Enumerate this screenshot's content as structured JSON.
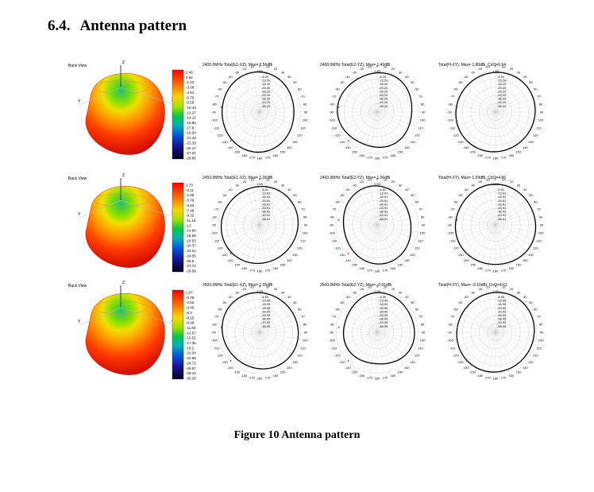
{
  "section": {
    "number": "6.4.",
    "title": "Antenna pattern"
  },
  "caption": "Figure 10 Antenna pattern",
  "angle_labels": [
    "0",
    "10",
    "20",
    "30",
    "40",
    "50",
    "60",
    "70",
    "80",
    "90",
    "100",
    "110",
    "120",
    "130",
    "140",
    "150",
    "160",
    "170",
    "180",
    "-170",
    "-160",
    "-150",
    "-140",
    "-130",
    "-120",
    "-110",
    "-100",
    "-90",
    "-80",
    "-70",
    "-60",
    "-50",
    "-40",
    "-30",
    "-20",
    "-10"
  ],
  "rows": [
    {
      "view_label": "Back View",
      "colorbar": [
        "2.46",
        "0.62",
        "-1.22",
        "-3.06",
        "-4.91",
        "-6.75",
        "-8.59",
        "-10.43",
        "-12.27",
        "-14.12",
        "-15.96",
        "-17.8",
        "-19.64",
        "-21.48",
        "-23.33",
        "-25.17",
        "-27.01",
        "-28.85"
      ],
      "plots": [
        {
          "title": "2400.0MHz Total(E1-XZ), Max= 0.56dBi",
          "top_value": "1.80",
          "rings": [
            "-8.20",
            "-13.20",
            "-18.20",
            "-23.20",
            "-28.20",
            "-33.20",
            "-38.20",
            "-43.20",
            "-48.20"
          ]
        },
        {
          "title": "2400.0MHz Total(E2-YZ), Max= 1.49dBi",
          "top_value": "1.80",
          "rings": [
            "-8.20",
            "-13.20",
            "-18.20",
            "-23.20",
            "-28.20",
            "-33.20",
            "-38.20",
            "-43.20",
            "-48.20"
          ]
        },
        {
          "title": "Total(H-XY), Max= 1.80dBi, CirO=6.64",
          "top_value": "1.80",
          "rings": [
            "-8.20",
            "-13.20",
            "-18.20",
            "-23.20",
            "-28.20",
            "-33.20",
            "-38.20",
            "-43.20",
            "-48.20"
          ]
        }
      ]
    },
    {
      "view_label": "Back View",
      "colorbar": [
        "1.73",
        "-0.11",
        "-1.95",
        "-3.79",
        "-5.63",
        "-7.48",
        "-9.32",
        "-11.16",
        "-13",
        "-14.84",
        "-16.69",
        "-18.53",
        "-20.37",
        "-22.21",
        "-24.06",
        "-25.9",
        "-27.74",
        "-29.58"
      ],
      "plots": [
        {
          "title": "2450.0MHz Total(E1-XZ), Max= 1.06dBi",
          "top_value": "1.09",
          "rings": [
            "-8.91",
            "-13.91",
            "-18.91",
            "-23.91",
            "-28.91",
            "-33.91",
            "-38.91",
            "-43.91",
            "-48.91"
          ]
        },
        {
          "title": "2450.0MHz Total(E2-YZ), Max= 1.06dBi",
          "top_value": "1.09",
          "rings": [
            "-8.91",
            "-13.91",
            "-18.91",
            "-23.91",
            "-28.91",
            "-33.91",
            "-38.91",
            "-43.91",
            "-48.91"
          ]
        },
        {
          "title": "Total(H-XY), Max= 1.09dBi, CirO=4.66",
          "top_value": "1.09",
          "rings": [
            "-8.91",
            "-13.91",
            "-18.91",
            "-23.91",
            "-28.91",
            "-33.91",
            "-38.91",
            "-43.91",
            "-48.91"
          ]
        }
      ]
    },
    {
      "view_label": "Back View",
      "colorbar": [
        "1.07",
        "-0.78",
        "-2.62",
        "-4.46",
        "-6.3",
        "-8.15",
        "-9.99",
        "-11.83",
        "-13.67",
        "-15.51",
        "-17.36",
        "-19.2",
        "-21.04",
        "-22.88",
        "-24.72",
        "-26.57",
        "-28.41",
        "-30.25"
      ],
      "plots": [
        {
          "title": "2500.0MHz Total(E1-XZ), Max= 1.05dBi",
          "top_value": "1.05",
          "rings": [
            "-8.95",
            "-13.95",
            "-18.95",
            "-23.95",
            "-28.95",
            "-33.95",
            "-38.95",
            "-43.95",
            "-48.95"
          ]
        },
        {
          "title": "2500.0MHz Total(E2-YZ), Max= -0.91dBi",
          "top_value": "1.05",
          "rings": [
            "-8.95",
            "-13.95",
            "-18.95",
            "-23.95",
            "-28.95",
            "-33.95",
            "-38.95",
            "-43.95",
            "-48.95"
          ]
        },
        {
          "title": "Total(H-XY), Max= -0.10dBi, CirO=4.61",
          "top_value": "1.05",
          "rings": [
            "-8.95",
            "-13.95",
            "-18.95",
            "-23.95",
            "-28.95",
            "-33.95",
            "-38.95",
            "-43.95",
            "-48.95"
          ]
        }
      ]
    }
  ],
  "axis_labels": {
    "z": "Z",
    "y": "Y",
    "x": "X"
  },
  "colors": {
    "text": "#000000",
    "grid": "#c8c8c8",
    "pattern": "#000000",
    "accent": "#a040c0"
  }
}
